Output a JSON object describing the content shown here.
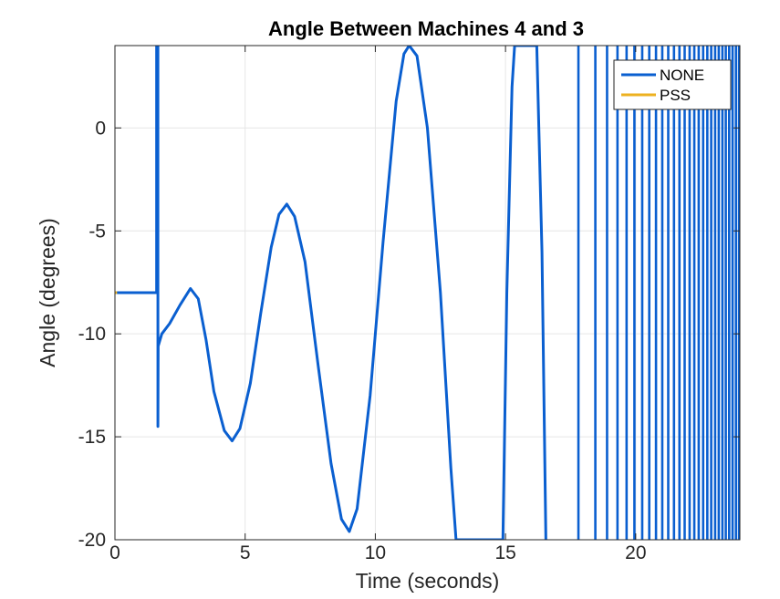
{
  "chart_data": {
    "type": "line",
    "title": "Angle Between Machines 4 and 3",
    "xlabel": "Time (seconds)",
    "ylabel": "Angle (degrees)",
    "xlim": [
      0,
      24
    ],
    "ylim": [
      -20,
      4
    ],
    "xticks": [
      0,
      5,
      10,
      15,
      20
    ],
    "yticks": [
      -20,
      -15,
      -10,
      -5,
      0
    ],
    "xtick_labels": [
      "0",
      "5",
      "10",
      "15",
      "20"
    ],
    "ytick_labels": [
      "-20",
      "-15",
      "-10",
      "-5",
      "0"
    ],
    "grid": true,
    "legend_position": "top-right",
    "series": [
      {
        "name": "NONE",
        "color": "#0a5fd0",
        "points": [
          [
            0,
            -8.0
          ],
          [
            1.6,
            -8.0
          ],
          [
            1.6,
            4.0
          ],
          [
            1.65,
            4.0
          ],
          [
            1.65,
            -14.5
          ],
          [
            1.66,
            -10.6
          ],
          [
            1.8,
            -10.0
          ],
          [
            2.1,
            -9.5
          ],
          [
            2.5,
            -8.6
          ],
          [
            2.9,
            -7.8
          ],
          [
            3.2,
            -8.3
          ],
          [
            3.5,
            -10.3
          ],
          [
            3.8,
            -12.8
          ],
          [
            4.2,
            -14.7
          ],
          [
            4.5,
            -15.2
          ],
          [
            4.8,
            -14.6
          ],
          [
            5.2,
            -12.4
          ],
          [
            5.6,
            -9.0
          ],
          [
            6.0,
            -5.8
          ],
          [
            6.3,
            -4.2
          ],
          [
            6.6,
            -3.7
          ],
          [
            6.9,
            -4.3
          ],
          [
            7.3,
            -6.5
          ],
          [
            7.8,
            -11.5
          ],
          [
            8.3,
            -16.3
          ],
          [
            8.7,
            -19.0
          ],
          [
            9.0,
            -19.6
          ],
          [
            9.3,
            -18.5
          ],
          [
            9.8,
            -13.0
          ],
          [
            10.3,
            -5.5
          ],
          [
            10.8,
            1.3
          ],
          [
            11.1,
            3.6
          ],
          [
            11.3,
            4.0
          ],
          [
            11.6,
            3.5
          ],
          [
            12.0,
            0.0
          ],
          [
            12.5,
            -8.0
          ],
          [
            12.9,
            -16.5
          ],
          [
            13.1,
            -20.0
          ],
          [
            14.9,
            -20.0
          ],
          [
            15.05,
            -8.0
          ],
          [
            15.25,
            2.0
          ],
          [
            15.35,
            4.0
          ],
          [
            16.2,
            4.0
          ],
          [
            16.4,
            -6.0
          ],
          [
            16.55,
            -20.0
          ]
        ]
      },
      {
        "name": "PSS",
        "color": "#edb120",
        "points": [
          [
            0,
            -8.0
          ],
          [
            0.08,
            -8.0
          ]
        ]
      }
    ],
    "oscillation_band": {
      "note": "NONE series oscillates beyond axis limits from about t=17.8 s to 24 s",
      "vertical_crossings_x": [
        17.8,
        18.45,
        18.9,
        19.3,
        19.65,
        19.95,
        20.25,
        20.52,
        20.78,
        21.02,
        21.25,
        21.47,
        21.68,
        21.88,
        22.07,
        22.25,
        22.42,
        22.59,
        22.75,
        22.9,
        23.05,
        23.19,
        23.33,
        23.46,
        23.59,
        23.72,
        23.85,
        23.97
      ]
    }
  }
}
